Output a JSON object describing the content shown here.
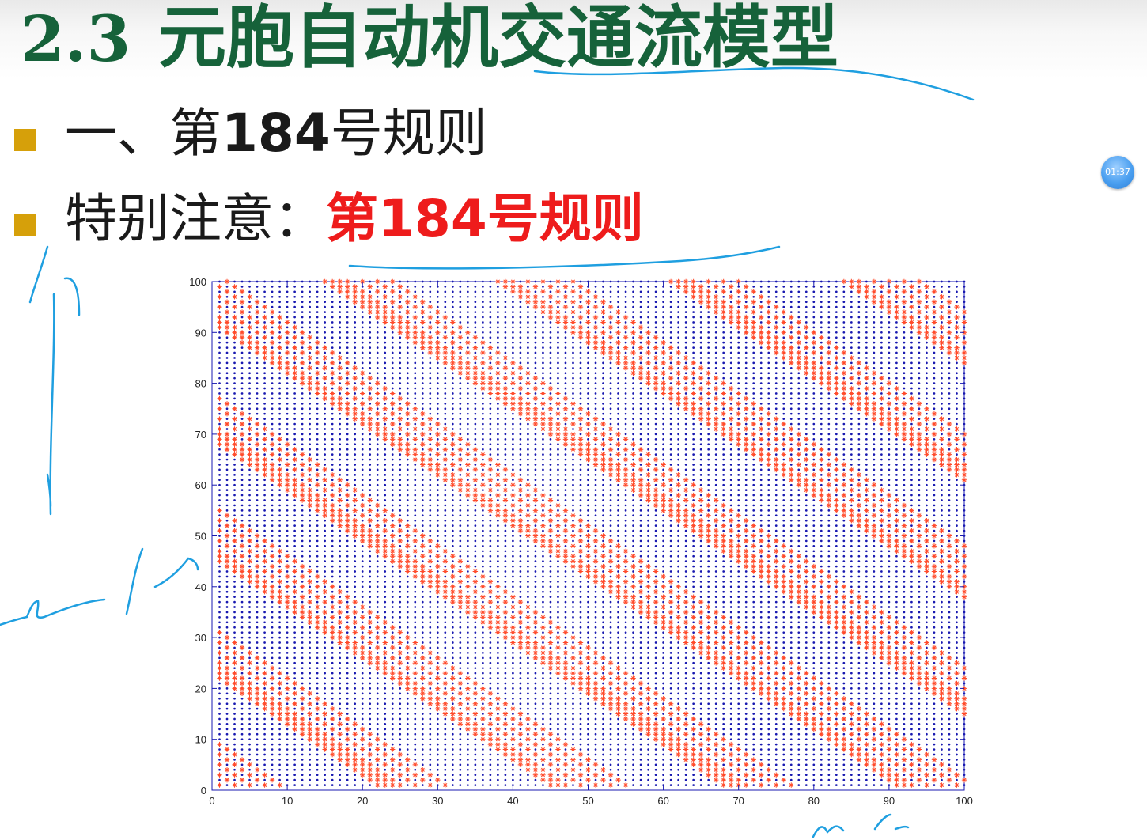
{
  "slide": {
    "title_number": "2.3",
    "title_text": "元胞自动机交通流模型",
    "bullets": [
      {
        "prefix": "一、第",
        "number": "184",
        "suffix": "号规则"
      },
      {
        "prefix": "特别注意：",
        "highlight_pre": "第",
        "highlight_num": "184",
        "highlight_post": "号规则"
      }
    ],
    "timer": "01:37"
  },
  "colors": {
    "title": "#16623a",
    "bullet": "#d6a00a",
    "highlight": "#ee1c1c",
    "occupied_marker": "#ff4a2a",
    "empty_marker": "#1818b0",
    "axes": "#1818b0",
    "annotation_ink": "#1f9fe0"
  },
  "chart_data": {
    "type": "scatter",
    "title": "",
    "xlabel": "",
    "ylabel": "",
    "xlim": [
      0,
      100
    ],
    "ylim": [
      0,
      100
    ],
    "xticks": [
      0,
      10,
      20,
      30,
      40,
      50,
      60,
      70,
      80,
      90,
      100
    ],
    "yticks": [
      0,
      10,
      20,
      30,
      40,
      50,
      60,
      70,
      80,
      90,
      100
    ],
    "grid": false,
    "legend": "none",
    "series": [
      {
        "marker": "*",
        "color": "#ff4a2a",
        "meaning": "occupied cell (car)"
      },
      {
        "marker": ".",
        "color": "#1818b0",
        "meaning": "empty cell"
      }
    ],
    "lattice": {
      "x_range": [
        1,
        100
      ],
      "y_range": [
        1,
        100
      ],
      "step": 1
    },
    "rule": 184,
    "pattern": "diagonal bands of cars moving one cell right per time step"
  }
}
